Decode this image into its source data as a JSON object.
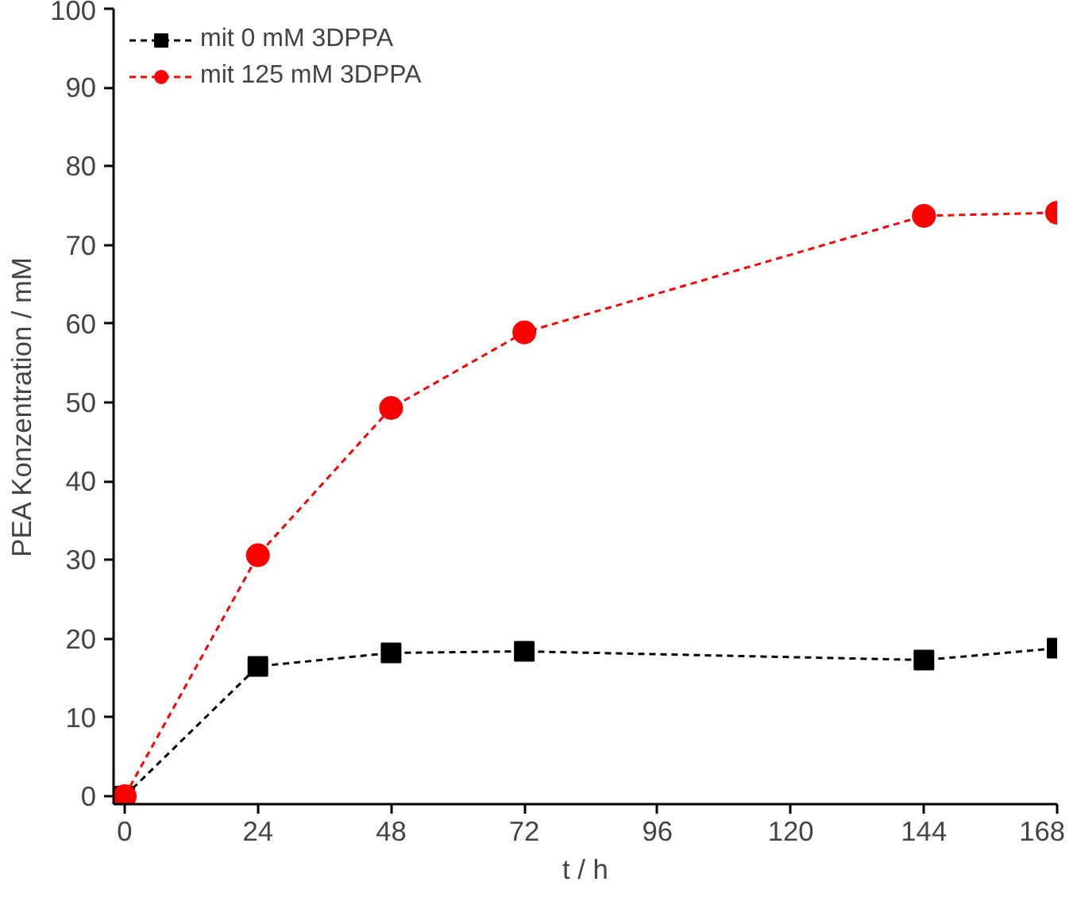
{
  "chart_data": {
    "type": "line",
    "xlabel": "t / h",
    "ylabel": "PEA Konzentration / mM",
    "x": [
      0,
      24,
      48,
      72,
      144,
      168
    ],
    "xlim": [
      -2,
      168
    ],
    "xticks": [
      0,
      24,
      48,
      72,
      96,
      120,
      144,
      168
    ],
    "ylim": [
      -1,
      100
    ],
    "yticks": [
      0,
      10,
      20,
      30,
      40,
      50,
      60,
      70,
      80,
      90,
      100
    ],
    "grid": false,
    "legend": "top left",
    "line_style": "dashed",
    "series": [
      {
        "name": "mit 0 mM 3DPPA",
        "color": "#000000",
        "marker": "square",
        "values": [
          0,
          16.5,
          18.2,
          18.4,
          17.3,
          18.8
        ]
      },
      {
        "name": "mit 125 mM 3DPPA",
        "color": "#ff0000",
        "marker": "circle",
        "values": [
          0,
          30.6,
          49.3,
          58.9,
          73.7,
          74.1
        ]
      }
    ]
  }
}
